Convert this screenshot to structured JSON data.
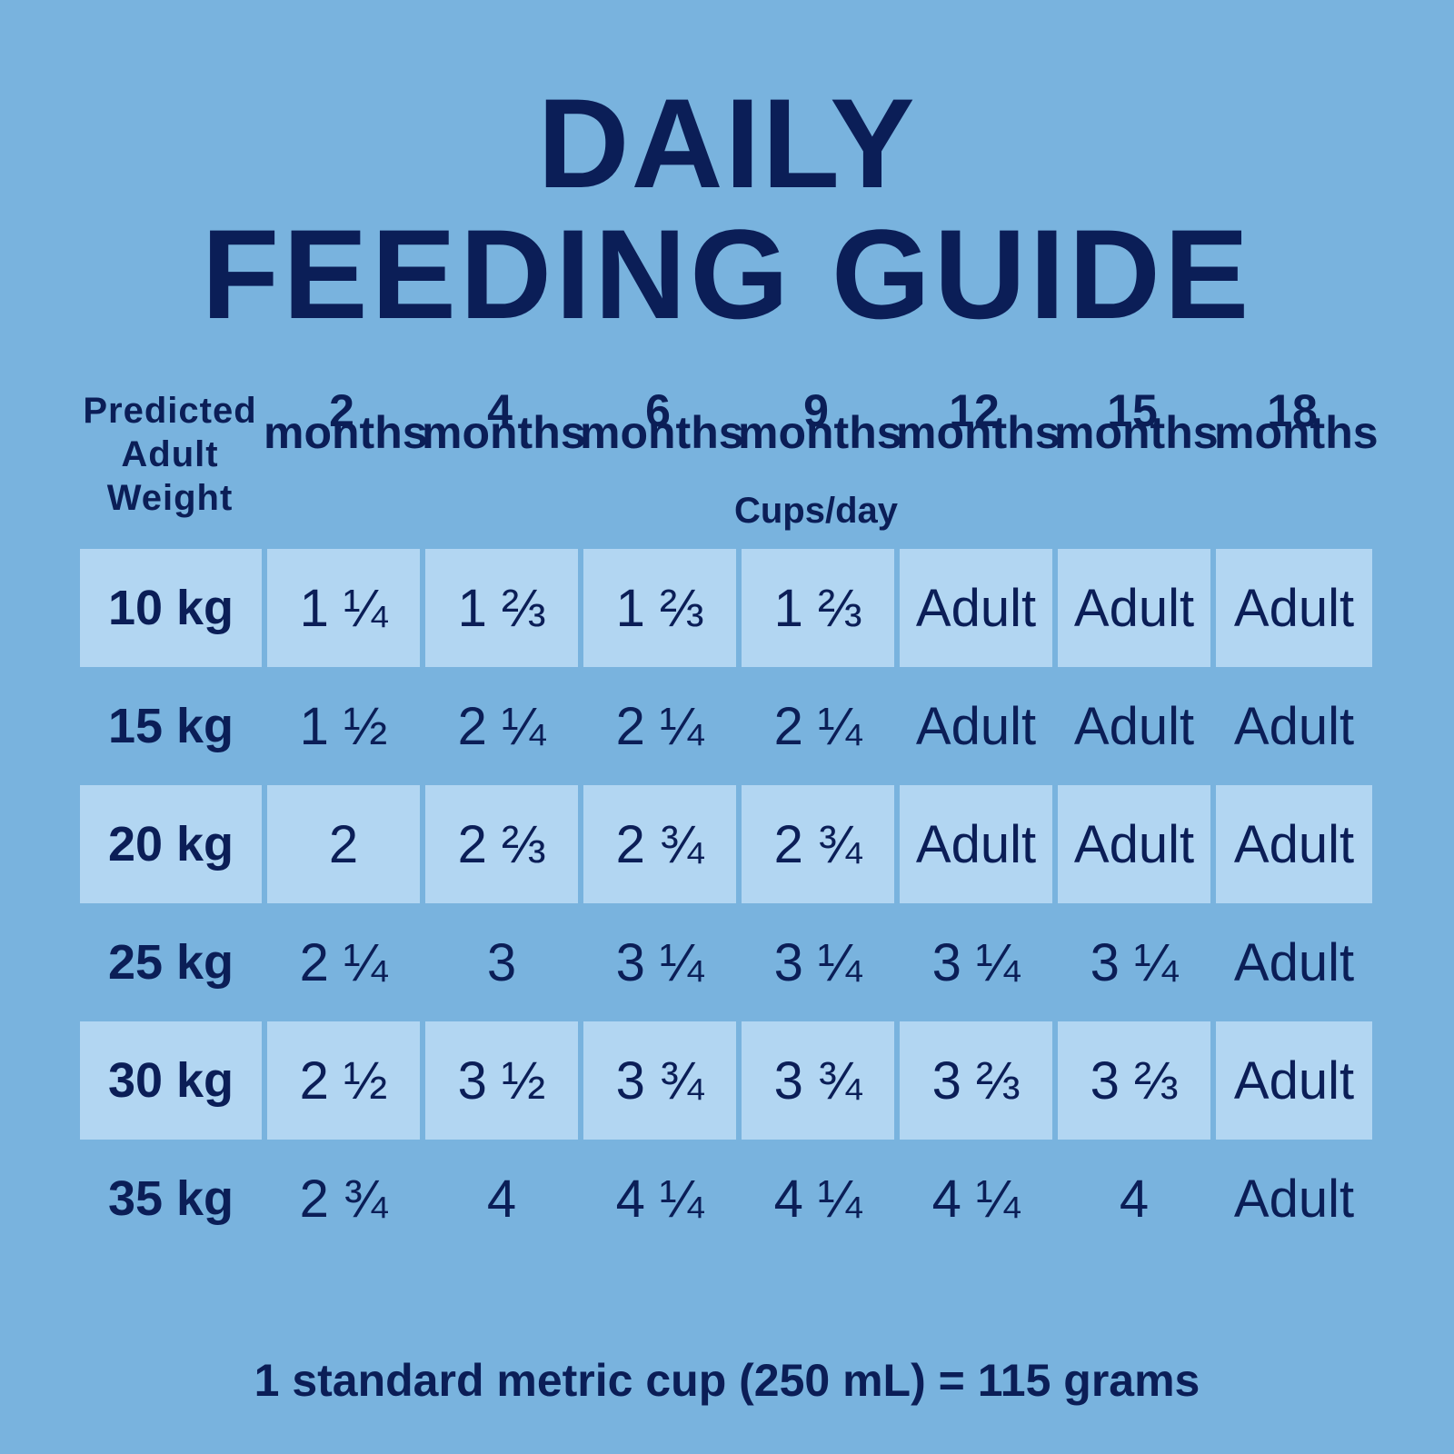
{
  "title": {
    "line1": "DAILY",
    "line2": "FEEDING GUIDE"
  },
  "header": {
    "weight_lines": [
      "Predicted",
      "Adult",
      "Weight"
    ],
    "ages": [
      {
        "num": "2",
        "unit": "months"
      },
      {
        "num": "4",
        "unit": "months"
      },
      {
        "num": "6",
        "unit": "months"
      },
      {
        "num": "9",
        "unit": "months"
      },
      {
        "num": "12",
        "unit": "months"
      },
      {
        "num": "15",
        "unit": "months"
      },
      {
        "num": "18",
        "unit": "months"
      }
    ],
    "subtitle": "Cups/day"
  },
  "rows": [
    {
      "weight": "10 kg",
      "values": [
        "1 ¼",
        "1 ⅔",
        "1 ⅔",
        "1 ⅔",
        "Adult",
        "Adult",
        "Adult"
      ]
    },
    {
      "weight": "15 kg",
      "values": [
        "1 ½",
        "2 ¼",
        "2 ¼",
        "2 ¼",
        "Adult",
        "Adult",
        "Adult"
      ]
    },
    {
      "weight": "20 kg",
      "values": [
        "2",
        "2 ⅔",
        "2 ¾",
        "2 ¾",
        "Adult",
        "Adult",
        "Adult"
      ]
    },
    {
      "weight": "25 kg",
      "values": [
        "2 ¼",
        "3",
        "3 ¼",
        "3 ¼",
        "3 ¼",
        "3 ¼",
        "Adult"
      ]
    },
    {
      "weight": "30 kg",
      "values": [
        "2 ½",
        "3 ½",
        "3 ¾",
        "3 ¾",
        "3 ⅔",
        "3 ⅔",
        "Adult"
      ]
    },
    {
      "weight": "35 kg",
      "values": [
        "2 ¾",
        "4",
        "4 ¼",
        "4 ¼",
        "4 ¼",
        "4",
        "Adult"
      ]
    }
  ],
  "footer": "1 standard metric cup (250 mL) = 115 grams",
  "colors": {
    "background": "#79b3de",
    "shaded_row": "#b2d6f2",
    "text": "#0b1e57"
  }
}
